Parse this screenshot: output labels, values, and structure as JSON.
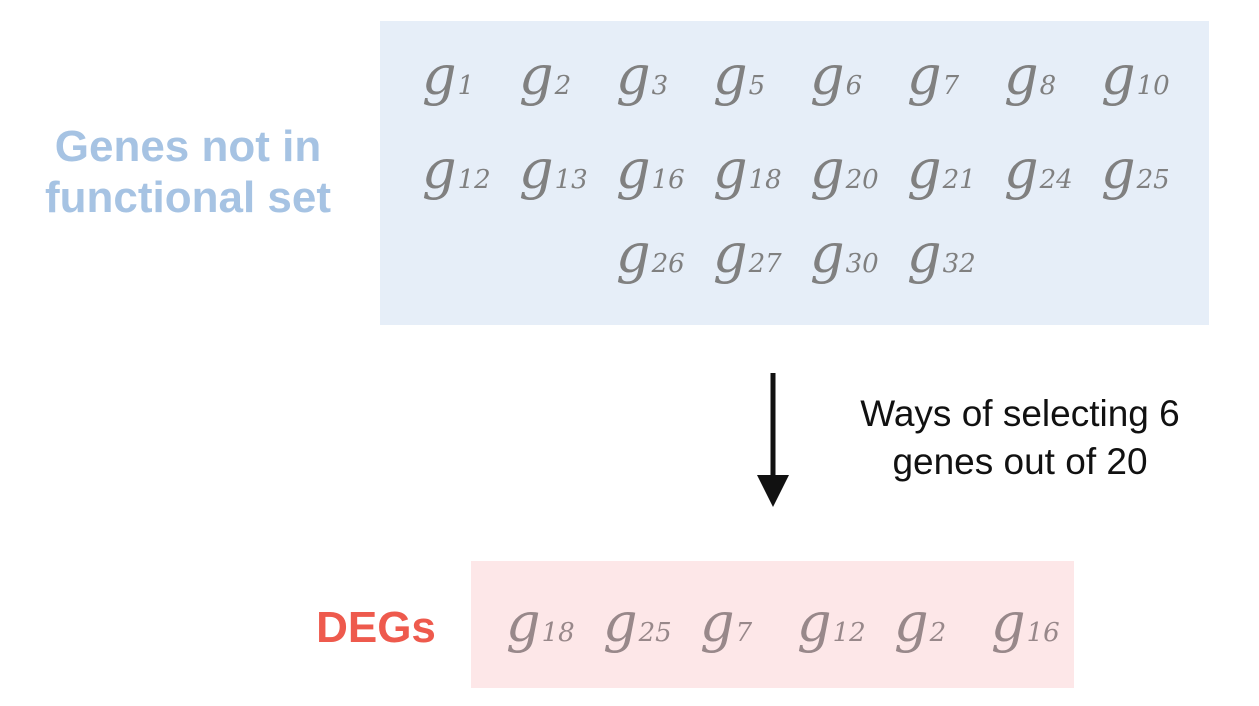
{
  "nodes": {
    "non_functional_set": {
      "label_lines": [
        "Genes not in",
        "functional set"
      ],
      "genes": [
        "1",
        "2",
        "3",
        "5",
        "6",
        "7",
        "8",
        "10",
        "12",
        "13",
        "16",
        "18",
        "20",
        "21",
        "24",
        "25",
        "26",
        "27",
        "30",
        "32"
      ]
    },
    "degs": {
      "label": "DEGs",
      "genes": [
        "18",
        "25",
        "7",
        "12",
        "2",
        "16"
      ]
    }
  },
  "edges": [
    {
      "from": "non_functional_set",
      "to": "degs",
      "label_lines": [
        "Ways of selecting 6",
        "genes out of 20"
      ]
    }
  ],
  "gene_symbol": "g",
  "colors": {
    "set_label": "#a6c3e3",
    "set_box": "#e6eef8",
    "set_gene": "#808080",
    "degs_label": "#ee5a4d",
    "degs_box": "#fde7e8",
    "degs_gene": "#98888a",
    "arrow": "#111111"
  }
}
